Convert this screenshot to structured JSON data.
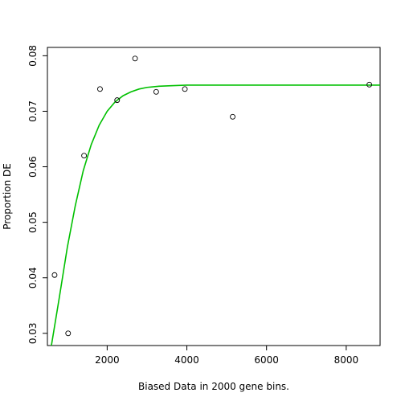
{
  "chart_data": {
    "type": "scatter",
    "title": "",
    "xlabel": "Biased Data in 2000 gene bins.",
    "ylabel": "Proportion DE",
    "xlim": [
      500,
      8850
    ],
    "ylim": [
      0.0278,
      0.0815
    ],
    "xticks": [
      2000,
      4000,
      6000,
      8000
    ],
    "yticks": [
      0.03,
      0.04,
      0.05,
      0.06,
      0.07,
      0.08
    ],
    "grid": false,
    "points": [
      {
        "x": 680,
        "y": 0.0405
      },
      {
        "x": 1020,
        "y": 0.03
      },
      {
        "x": 1420,
        "y": 0.062
      },
      {
        "x": 1820,
        "y": 0.074
      },
      {
        "x": 2250,
        "y": 0.072
      },
      {
        "x": 2700,
        "y": 0.0795
      },
      {
        "x": 3230,
        "y": 0.0735
      },
      {
        "x": 3950,
        "y": 0.074
      },
      {
        "x": 5150,
        "y": 0.069
      },
      {
        "x": 8580,
        "y": 0.0748
      }
    ],
    "fit_curve": {
      "color": "#00c000",
      "points": [
        {
          "x": 600,
          "y": 0.0278
        },
        {
          "x": 800,
          "y": 0.0365
        },
        {
          "x": 1000,
          "y": 0.0455
        },
        {
          "x": 1200,
          "y": 0.053
        },
        {
          "x": 1400,
          "y": 0.0593
        },
        {
          "x": 1600,
          "y": 0.064
        },
        {
          "x": 1800,
          "y": 0.0675
        },
        {
          "x": 2000,
          "y": 0.07
        },
        {
          "x": 2200,
          "y": 0.0717
        },
        {
          "x": 2400,
          "y": 0.0728
        },
        {
          "x": 2600,
          "y": 0.0735
        },
        {
          "x": 2800,
          "y": 0.074
        },
        {
          "x": 3000,
          "y": 0.0743
        },
        {
          "x": 3300,
          "y": 0.0745
        },
        {
          "x": 3600,
          "y": 0.0746
        },
        {
          "x": 4000,
          "y": 0.0747
        },
        {
          "x": 5000,
          "y": 0.0747
        },
        {
          "x": 6000,
          "y": 0.0747
        },
        {
          "x": 7000,
          "y": 0.0747
        },
        {
          "x": 8000,
          "y": 0.0747
        },
        {
          "x": 8850,
          "y": 0.0747
        }
      ]
    },
    "point_color": "#000000"
  }
}
